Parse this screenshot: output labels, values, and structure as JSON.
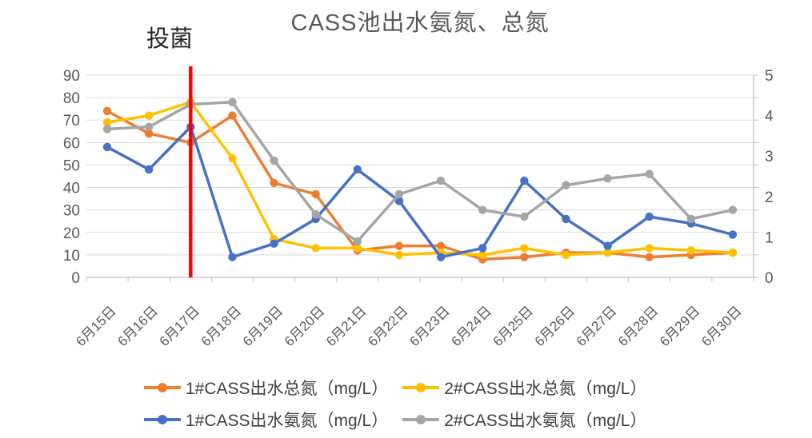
{
  "chart_data": {
    "type": "line",
    "title": "CASS池出水氨氮、总氮",
    "annotation": {
      "text": "投菌",
      "at_category": "6月17日",
      "line_color": "#FF0000"
    },
    "categories": [
      "6月15日",
      "6月16日",
      "6月17日",
      "6月18日",
      "6月19日",
      "6月20日",
      "6月21日",
      "6月22日",
      "6月23日",
      "6月24日",
      "6月25日",
      "6月26日",
      "6月27日",
      "6月28日",
      "6月29日",
      "6月30日"
    ],
    "series": [
      {
        "name": "1#CASS出水总氮（mg/L）",
        "color": "#ED7D31",
        "values": [
          74,
          64,
          60,
          72,
          42,
          37,
          12,
          14,
          14,
          8,
          9,
          11,
          11,
          9,
          10,
          11
        ]
      },
      {
        "name": "2#CASS出水总氮（mg/L）",
        "color": "#FFC000",
        "values": [
          69,
          72,
          78,
          53,
          17,
          13,
          13,
          10,
          11,
          10,
          13,
          10,
          11,
          13,
          12,
          11
        ]
      },
      {
        "name": "1#CASS出水氨氮（mg/L）",
        "color": "#4472C4",
        "values": [
          58,
          48,
          67,
          9,
          15,
          26,
          48,
          34,
          9,
          13,
          43,
          26,
          14,
          27,
          24,
          19
        ]
      },
      {
        "name": "2#CASS出水氨氮（mg/L）",
        "color": "#A5A5A5",
        "values": [
          66,
          67,
          77,
          78,
          52,
          28,
          16,
          37,
          43,
          30,
          27,
          41,
          44,
          46,
          26,
          30
        ]
      }
    ],
    "left_axis": {
      "tick_labels": [
        "0",
        "10",
        "20",
        "30",
        "40",
        "50",
        "60",
        "70",
        "80",
        "90"
      ],
      "lim": [
        0,
        90
      ]
    },
    "right_axis": {
      "tick_labels": [
        "0",
        "1",
        "2",
        "3",
        "4",
        "5"
      ],
      "lim": [
        0,
        5
      ]
    },
    "grid": true,
    "legend_position": "bottom",
    "legend_rows": [
      [
        0,
        1
      ],
      [
        2,
        3
      ]
    ],
    "style": {
      "grid_color": "#D9D9D9",
      "axis_color": "#BFBFBF",
      "axis_text_color": "#595959",
      "title_color": "#595959",
      "legend_text_color": "#404040",
      "annotation_text_color": "#262626",
      "background": "#FFFFFF"
    }
  }
}
